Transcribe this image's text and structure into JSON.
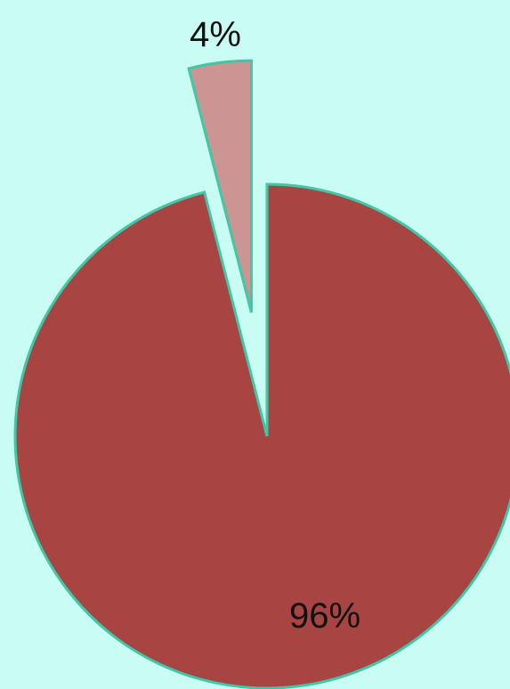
{
  "chart_data": {
    "type": "pie",
    "slices": [
      {
        "value": 96,
        "label": "96%",
        "color": "#a84442"
      },
      {
        "value": 4,
        "label": "4%",
        "color": "#cc9594",
        "exploded": true
      }
    ],
    "edge_color": "#3fc7a6",
    "background": "#c9fdf3"
  }
}
